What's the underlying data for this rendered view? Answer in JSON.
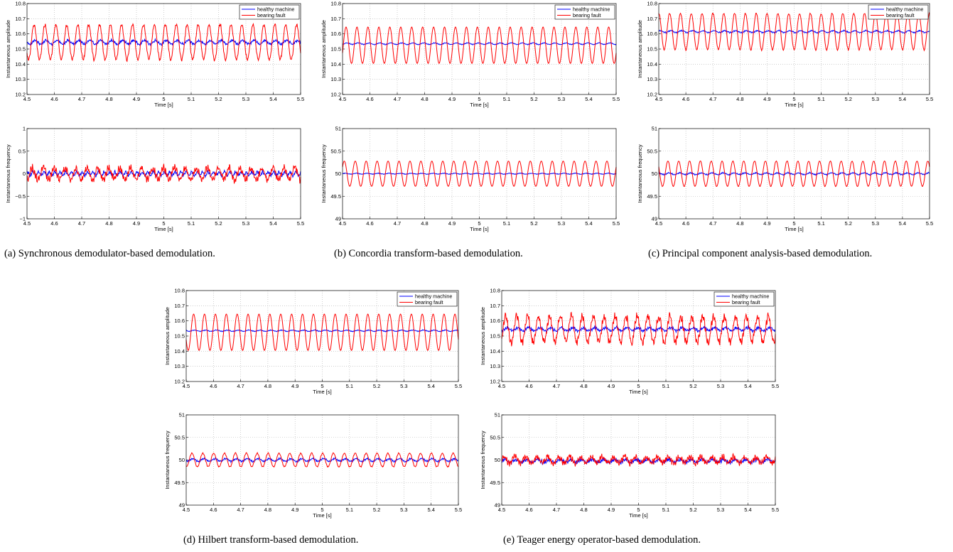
{
  "legend": {
    "healthy": "healthy machine",
    "fault": "bearing fault"
  },
  "colors": {
    "healthy": "#0000ff",
    "fault": "#ff0000",
    "grid": "#b0b0b0"
  },
  "captions": {
    "a": "(a) Synchronous demodulator-based demodulation.",
    "b": "(b) Concordia transform-based demodulation.",
    "c": "(c) Principal component analysis-based demodulation.",
    "d": "(d) Hilbert transform-based demodulation.",
    "e": "(e) Teager energy operator-based demodulation."
  },
  "chart_data": [
    {
      "panel": "a-top",
      "type": "line",
      "xlabel": "Time [s]",
      "ylabel": "Instantaneous amplitude",
      "xlim": [
        4.5,
        5.5
      ],
      "xticks": [
        "4.5",
        "4.6",
        "4.7",
        "4.8",
        "4.9",
        "5",
        "5.1",
        "5.2",
        "5.3",
        "5.4",
        "5.5"
      ],
      "ylim": [
        10.2,
        10.8
      ],
      "yticks": [
        "10.2",
        "10.3",
        "10.4",
        "10.5",
        "10.6",
        "10.7",
        "10.8"
      ],
      "grid": true,
      "legend_position": "top-right",
      "series": [
        {
          "name": "healthy machine",
          "color": "#0000ff",
          "mean": 10.545,
          "amplitude": 0.012,
          "frequency_hz": 25,
          "noise": 0.006
        },
        {
          "name": "bearing fault",
          "color": "#ff0000",
          "mean": 10.545,
          "amplitude": 0.115,
          "frequency_hz": 25,
          "noise": 0.008
        }
      ]
    },
    {
      "panel": "a-bottom",
      "type": "line",
      "xlabel": "Time [s]",
      "ylabel": "Instantaneous frequency",
      "xlim": [
        4.5,
        5.5
      ],
      "xticks": [
        "4.5",
        "4.6",
        "4.7",
        "4.8",
        "4.9",
        "5",
        "5.1",
        "5.2",
        "5.3",
        "5.4",
        "5.5"
      ],
      "ylim": [
        -1,
        1
      ],
      "yticks": [
        "−1",
        "−0.5",
        "0",
        "0.5",
        "1"
      ],
      "grid": true,
      "legend_position": "none",
      "series": [
        {
          "name": "healthy machine",
          "color": "#0000ff",
          "mean": 0,
          "amplitude": 0.04,
          "frequency_hz": 50,
          "noise": 0.025
        },
        {
          "name": "bearing fault",
          "color": "#ff0000",
          "mean": 0,
          "amplitude": 0.13,
          "frequency_hz": 25,
          "noise": 0.06
        }
      ]
    },
    {
      "panel": "b-top",
      "type": "line",
      "xlabel": "Time [s]",
      "ylabel": "Instantaneous amplitude",
      "xlim": [
        4.5,
        5.5
      ],
      "xticks": [
        "4.5",
        "4.6",
        "4.7",
        "4.8",
        "4.9",
        "5",
        "5.1",
        "5.2",
        "5.3",
        "5.4",
        "5.5"
      ],
      "ylim": [
        10.2,
        10.8
      ],
      "yticks": [
        "10.2",
        "10.3",
        "10.4",
        "10.5",
        "10.6",
        "10.7",
        "10.8"
      ],
      "grid": true,
      "legend_position": "top-right",
      "series": [
        {
          "name": "healthy machine",
          "color": "#0000ff",
          "mean": 10.535,
          "amplitude": 0.005,
          "frequency_hz": 25,
          "noise": 0.002
        },
        {
          "name": "bearing fault",
          "color": "#ff0000",
          "mean": 10.525,
          "amplitude": 0.12,
          "frequency_hz": 25,
          "noise": 0
        }
      ]
    },
    {
      "panel": "b-bottom",
      "type": "line",
      "xlabel": "Time [s]",
      "ylabel": "Instantaneous frequency",
      "xlim": [
        4.5,
        5.5
      ],
      "xticks": [
        "4.5",
        "4.6",
        "4.7",
        "4.8",
        "4.9",
        "5",
        "5.1",
        "5.2",
        "5.3",
        "5.4",
        "5.5"
      ],
      "ylim": [
        49,
        51
      ],
      "yticks": [
        "49",
        "49.5",
        "50",
        "50.5",
        "51"
      ],
      "grid": true,
      "legend_position": "none",
      "series": [
        {
          "name": "healthy machine",
          "color": "#0000ff",
          "mean": 50,
          "amplitude": 0.01,
          "frequency_hz": 25,
          "noise": 0.005
        },
        {
          "name": "bearing fault",
          "color": "#ff0000",
          "mean": 50,
          "amplitude": 0.28,
          "frequency_hz": 25,
          "noise": 0
        }
      ]
    },
    {
      "panel": "c-top",
      "type": "line",
      "xlabel": "Time [s]",
      "ylabel": "Instantaneous amplitude",
      "xlim": [
        4.5,
        5.5
      ],
      "xticks": [
        "4.5",
        "4.6",
        "4.7",
        "4.8",
        "4.9",
        "5",
        "5.1",
        "5.2",
        "5.3",
        "5.4",
        "5.5"
      ],
      "ylim": [
        10.2,
        10.8
      ],
      "yticks": [
        "10.2",
        "10.3",
        "10.4",
        "10.5",
        "10.6",
        "10.7",
        "10.8"
      ],
      "grid": true,
      "legend_position": "top-right",
      "series": [
        {
          "name": "healthy machine",
          "color": "#0000ff",
          "mean": 10.615,
          "amplitude": 0.006,
          "frequency_hz": 25,
          "noise": 0.003
        },
        {
          "name": "bearing fault",
          "color": "#ff0000",
          "mean": 10.615,
          "amplitude": 0.12,
          "frequency_hz": 25,
          "noise": 0.004
        }
      ]
    },
    {
      "panel": "c-bottom",
      "type": "line",
      "xlabel": "Time [s]",
      "ylabel": "Instantaneous frequency",
      "xlim": [
        4.5,
        5.5
      ],
      "xticks": [
        "4.5",
        "4.6",
        "4.7",
        "4.8",
        "4.9",
        "5",
        "5.1",
        "5.2",
        "5.3",
        "5.4",
        "5.5"
      ],
      "ylim": [
        49,
        51
      ],
      "yticks": [
        "49",
        "49.5",
        "50",
        "50.5",
        "51"
      ],
      "grid": true,
      "legend_position": "none",
      "series": [
        {
          "name": "healthy machine",
          "color": "#0000ff",
          "mean": 50,
          "amplitude": 0.02,
          "frequency_hz": 25,
          "noise": 0.01
        },
        {
          "name": "bearing fault",
          "color": "#ff0000",
          "mean": 50,
          "amplitude": 0.28,
          "frequency_hz": 25,
          "noise": 0.005
        }
      ]
    },
    {
      "panel": "d-top",
      "type": "line",
      "xlabel": "Time [s]",
      "ylabel": "Instantaneous amplitude",
      "xlim": [
        4.5,
        5.5
      ],
      "xticks": [
        "4.5",
        "4.6",
        "4.7",
        "4.8",
        "4.9",
        "5",
        "5.1",
        "5.2",
        "5.3",
        "5.4",
        "5.5"
      ],
      "ylim": [
        10.2,
        10.8
      ],
      "yticks": [
        "10.2",
        "10.3",
        "10.4",
        "10.5",
        "10.6",
        "10.7",
        "10.8"
      ],
      "grid": true,
      "legend_position": "top-right",
      "series": [
        {
          "name": "healthy machine",
          "color": "#0000ff",
          "mean": 10.535,
          "amplitude": 0.004,
          "frequency_hz": 25,
          "noise": 0.002
        },
        {
          "name": "bearing fault",
          "color": "#ff0000",
          "mean": 10.525,
          "amplitude": 0.12,
          "frequency_hz": 25,
          "noise": 0
        }
      ]
    },
    {
      "panel": "d-bottom",
      "type": "line",
      "xlabel": "Time [s]",
      "ylabel": "Instantaneous frequency",
      "xlim": [
        4.5,
        5.5
      ],
      "xticks": [
        "4.5",
        "4.6",
        "4.7",
        "4.8",
        "4.9",
        "5",
        "5.1",
        "5.2",
        "5.3",
        "5.4",
        "5.5"
      ],
      "ylim": [
        49,
        51
      ],
      "yticks": [
        "49",
        "49.5",
        "50",
        "50.5",
        "51"
      ],
      "grid": true,
      "legend_position": "none",
      "series": [
        {
          "name": "healthy machine",
          "color": "#0000ff",
          "mean": 50,
          "amplitude": 0.03,
          "frequency_hz": 25,
          "noise": 0.015
        },
        {
          "name": "bearing fault",
          "color": "#ff0000",
          "mean": 50,
          "amplitude": 0.15,
          "frequency_hz": 25,
          "noise": 0.01
        }
      ]
    },
    {
      "panel": "e-top",
      "type": "line",
      "xlabel": "Time [s]",
      "ylabel": "Instantaneous amplitude",
      "xlim": [
        4.5,
        5.5
      ],
      "xticks": [
        "4.5",
        "4.6",
        "4.7",
        "4.8",
        "4.9",
        "5",
        "5.1",
        "5.2",
        "5.3",
        "5.4",
        "5.5"
      ],
      "ylim": [
        10.2,
        10.8
      ],
      "yticks": [
        "10.2",
        "10.3",
        "10.4",
        "10.5",
        "10.6",
        "10.7",
        "10.8"
      ],
      "grid": true,
      "legend_position": "top-right",
      "series": [
        {
          "name": "healthy machine",
          "color": "#0000ff",
          "mean": 10.545,
          "amplitude": 0.01,
          "frequency_hz": 25,
          "noise": 0.007
        },
        {
          "name": "bearing fault",
          "color": "#ff0000",
          "mean": 10.545,
          "amplitude": 0.085,
          "frequency_hz": 25,
          "noise": 0.02
        }
      ]
    },
    {
      "panel": "e-bottom",
      "type": "line",
      "xlabel": "Time [s]",
      "ylabel": "Instantaneous frequency",
      "xlim": [
        4.5,
        5.5
      ],
      "xticks": [
        "4.5",
        "4.6",
        "4.7",
        "4.8",
        "4.9",
        "5",
        "5.1",
        "5.2",
        "5.3",
        "5.4",
        "5.5"
      ],
      "ylim": [
        49,
        51
      ],
      "yticks": [
        "49",
        "49.5",
        "50",
        "50.5",
        "51"
      ],
      "grid": true,
      "legend_position": "none",
      "series": [
        {
          "name": "healthy machine",
          "color": "#0000ff",
          "mean": 49.98,
          "amplitude": 0.03,
          "frequency_hz": 25,
          "noise": 0.03
        },
        {
          "name": "bearing fault",
          "color": "#ff0000",
          "mean": 50,
          "amplitude": 0.07,
          "frequency_hz": 25,
          "noise": 0.05
        }
      ]
    }
  ]
}
